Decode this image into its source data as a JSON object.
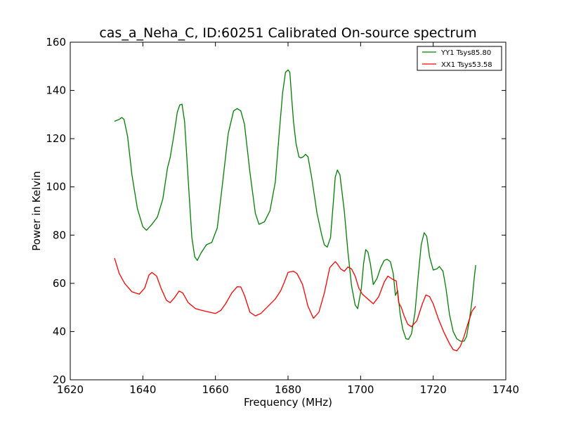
{
  "chart_data": {
    "type": "line",
    "title": "cas_a_Neha_C, ID:60251 Calibrated On-source spectrum",
    "xlabel": "Frequency (MHz)",
    "ylabel": "Power in Kelvin",
    "xlim": [
      1620,
      1740
    ],
    "ylim": [
      20,
      160
    ],
    "xticks": [
      1620,
      1640,
      1660,
      1680,
      1700,
      1720,
      1740
    ],
    "yticks": [
      20,
      40,
      60,
      80,
      100,
      120,
      140,
      160
    ],
    "xtick_labels": [
      "1620",
      "1640",
      "1660",
      "1680",
      "1700",
      "1720",
      "1740"
    ],
    "ytick_labels": [
      "20",
      "40",
      "60",
      "80",
      "100",
      "120",
      "140",
      "160"
    ],
    "grid": false,
    "legend_position": "top-right",
    "series": [
      {
        "name": "YY1 Tsys85.80",
        "color": "#008000",
        "x": [
          1632.2,
          1633.5,
          1634.2,
          1634.8,
          1635.8,
          1637,
          1638.5,
          1640,
          1641,
          1642.5,
          1644,
          1645.5,
          1646.8,
          1647.5,
          1648.5,
          1649.5,
          1650.2,
          1650.8,
          1651.5,
          1652.5,
          1653.5,
          1654.3,
          1655,
          1656,
          1657.5,
          1659,
          1660.5,
          1662,
          1663.5,
          1665,
          1666,
          1667,
          1668,
          1669.5,
          1671,
          1672,
          1673.5,
          1675,
          1676.5,
          1677.5,
          1678.5,
          1679.3,
          1680,
          1680.5,
          1681,
          1681.5,
          1682.2,
          1683,
          1683.5,
          1684.2,
          1684.8,
          1685.5,
          1686.5,
          1688,
          1689.3,
          1690,
          1690.8,
          1691.7,
          1692.5,
          1693,
          1693.6,
          1694.3,
          1695.5,
          1696.5,
          1697.5,
          1698.5,
          1699.2,
          1700.2,
          1700.8,
          1701.4,
          1702,
          1702.7,
          1703.5,
          1704.5,
          1705.5,
          1706.5,
          1707.3,
          1708.2,
          1709,
          1709.6,
          1710.2,
          1710.9,
          1711.6,
          1712.5,
          1713.2,
          1714,
          1715,
          1715.8,
          1716.7,
          1717.5,
          1718.2,
          1719,
          1720,
          1721,
          1721.7,
          1722.7,
          1723.5,
          1724.5,
          1725.5,
          1726.5,
          1727.5,
          1728.5,
          1729.2,
          1730,
          1730.7,
          1731.3,
          1731.7
        ],
        "y": [
          127.2,
          128,
          128.8,
          128,
          121,
          105,
          91,
          83.5,
          82,
          84.5,
          87.5,
          95,
          108,
          112,
          121,
          131,
          134,
          134.3,
          127,
          103,
          79,
          71,
          69.5,
          72.5,
          76,
          77,
          83,
          102,
          122,
          131.5,
          132.5,
          131.5,
          126,
          106,
          89,
          84.5,
          85.5,
          90,
          102,
          121,
          139,
          147.5,
          148.5,
          147.5,
          137,
          127,
          118,
          112.5,
          112,
          112.5,
          113.5,
          112.5,
          104,
          89,
          80,
          76,
          75,
          79,
          94,
          104,
          107,
          105,
          90,
          73,
          59,
          51,
          49.5,
          58,
          68,
          74,
          73,
          68,
          59.5,
          62,
          66.5,
          69.5,
          70,
          69,
          64,
          55,
          57,
          47,
          41,
          37,
          36.8,
          39,
          48,
          62,
          76,
          81,
          79.5,
          71,
          65.5,
          66,
          67,
          65,
          58,
          47,
          40,
          37,
          36,
          36,
          38,
          45,
          53,
          62,
          67.5
        ]
      },
      {
        "name": "XX1 Tsys53.58",
        "color": "#ff0000",
        "x": [
          1632.2,
          1633.5,
          1635,
          1637,
          1639,
          1640.5,
          1641.7,
          1642.5,
          1643.8,
          1645,
          1646.5,
          1647.5,
          1648.7,
          1650,
          1651,
          1652.5,
          1654.5,
          1657,
          1660,
          1661.5,
          1662.8,
          1664.5,
          1666,
          1667,
          1668,
          1669.5,
          1671,
          1672.5,
          1674.5,
          1676.5,
          1678,
          1679,
          1680,
          1680.7,
          1681.5,
          1682.5,
          1684,
          1685.5,
          1687,
          1688.5,
          1690,
          1691.5,
          1693,
          1693.6,
          1694.5,
          1695.5,
          1696.5,
          1697.5,
          1698.5,
          1699.5,
          1700.5,
          1702,
          1703.5,
          1705,
          1706.5,
          1707.5,
          1708.5,
          1709,
          1709.8,
          1710.5,
          1711.2,
          1712,
          1713,
          1714,
          1715.5,
          1717,
          1718,
          1719,
          1720,
          1721.5,
          1723,
          1724.5,
          1725.5,
          1726.5,
          1727.5,
          1728.5,
          1729.5,
          1730.7,
          1731.7
        ],
        "y": [
          70.5,
          64,
          60,
          56.5,
          55.5,
          58,
          63.5,
          64.5,
          63,
          58,
          53,
          52,
          54,
          56.8,
          56,
          52,
          49.5,
          48.5,
          47.5,
          48.8,
          51.5,
          56,
          58.6,
          58.5,
          55,
          48,
          46.5,
          47.5,
          50.5,
          53.5,
          57,
          60.5,
          64.5,
          64.8,
          65,
          64,
          59.5,
          50.5,
          45.5,
          48,
          56,
          66.5,
          69,
          68,
          66,
          65,
          66.8,
          66,
          63,
          58,
          55.5,
          53.5,
          51.5,
          54.5,
          60.5,
          63,
          62,
          61.5,
          61,
          52,
          50,
          46.5,
          43,
          42,
          44.5,
          51.5,
          55.2,
          54.5,
          51.5,
          45,
          39.5,
          35,
          32.5,
          32,
          34,
          38,
          43,
          48.5,
          50.5
        ]
      }
    ]
  }
}
